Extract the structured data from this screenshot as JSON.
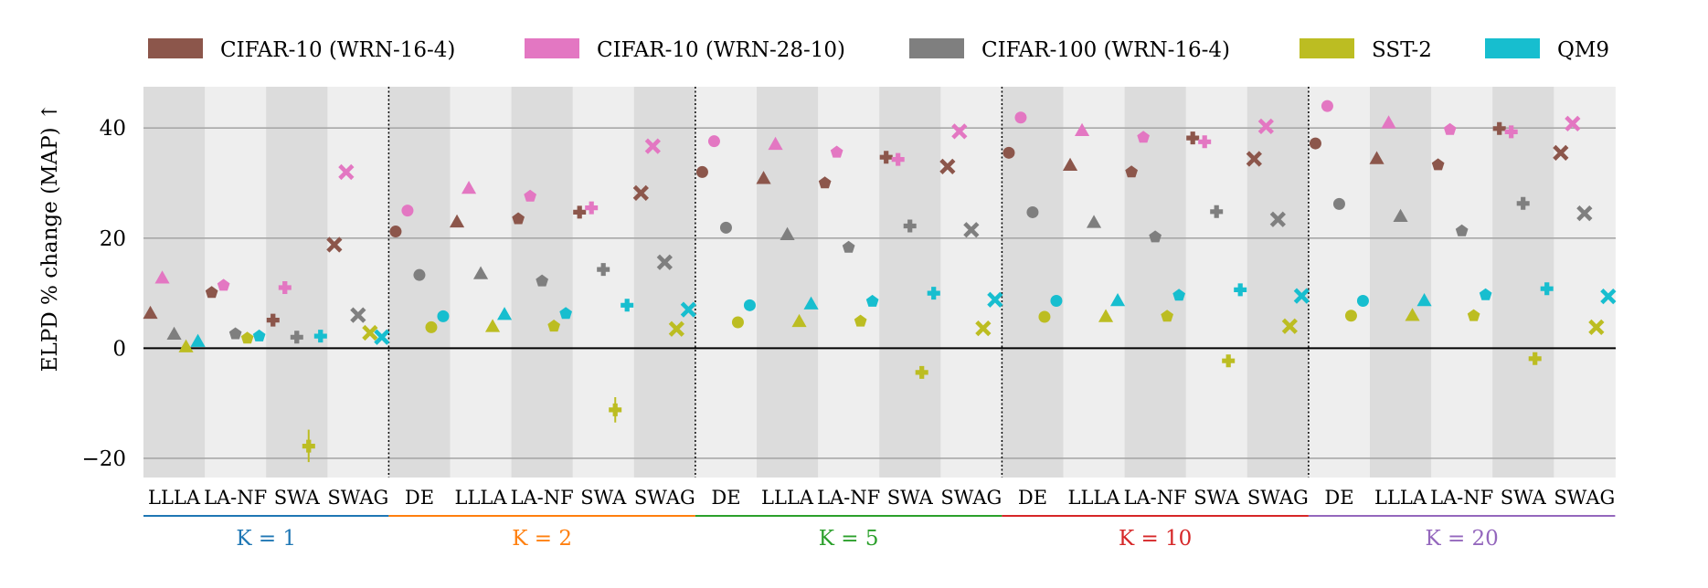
{
  "chart_data": {
    "type": "scatter",
    "title": "",
    "xlabel": "",
    "ylabel": "ELPD % change (MAP) ↑",
    "ylim": [
      -23.5,
      47.5
    ],
    "yticks": [
      -20,
      0,
      20,
      40
    ],
    "grid": true,
    "legend_position": "top",
    "legend": [
      {
        "name": "CIFAR-10 (WRN-16-4)",
        "color": "#8c564b"
      },
      {
        "name": "CIFAR-10 (WRN-28-10)",
        "color": "#e377c2"
      },
      {
        "name": "CIFAR-100 (WRN-16-4)",
        "color": "#7f7f7f"
      },
      {
        "name": "SST-2",
        "color": "#bcbd22"
      },
      {
        "name": "QM9",
        "color": "#17becf"
      }
    ],
    "method_markers": {
      "DE": "circle",
      "LLLA": "triangle",
      "LA-NF": "pentagon",
      "SWA": "plus",
      "SWAG": "x"
    },
    "groups": [
      {
        "label": "K = 1",
        "color": "#1f77b4",
        "methods": [
          "LLLA",
          "LA-NF",
          "SWA",
          "SWAG"
        ],
        "values": [
          [
            6.3,
            12.7,
            2.5,
            0.2,
            1.2
          ],
          [
            10.1,
            11.4,
            2.6,
            1.8,
            2.2
          ],
          [
            5.1,
            11.0,
            2.0,
            -17.8,
            2.2
          ],
          [
            18.8,
            32.0,
            6.0,
            2.8,
            2.0
          ]
        ]
      },
      {
        "label": "K = 2",
        "color": "#ff7f0e",
        "methods": [
          "DE",
          "LLLA",
          "LA-NF",
          "SWA",
          "SWAG"
        ],
        "values": [
          [
            21.2,
            25.0,
            13.3,
            3.8,
            5.8
          ],
          [
            22.9,
            29.0,
            13.5,
            3.9,
            6.1
          ],
          [
            23.5,
            27.6,
            12.2,
            4.0,
            6.3
          ],
          [
            24.7,
            25.5,
            14.3,
            -11.2,
            7.8
          ],
          [
            28.2,
            36.7,
            15.6,
            3.5,
            7.0
          ]
        ]
      },
      {
        "label": "K = 5",
        "color": "#2ca02c",
        "methods": [
          "DE",
          "LLLA",
          "LA-NF",
          "SWA",
          "SWAG"
        ],
        "values": [
          [
            32.0,
            37.6,
            21.9,
            4.7,
            7.8
          ],
          [
            30.8,
            37.0,
            20.6,
            4.8,
            8.0
          ],
          [
            30.0,
            35.6,
            18.3,
            4.9,
            8.5
          ],
          [
            34.7,
            34.3,
            22.2,
            -4.4,
            10.0
          ],
          [
            33.0,
            39.4,
            21.5,
            3.6,
            8.8
          ]
        ]
      },
      {
        "label": "K = 10",
        "color": "#d62728",
        "methods": [
          "DE",
          "LLLA",
          "LA-NF",
          "SWA",
          "SWAG"
        ],
        "values": [
          [
            35.5,
            41.9,
            24.7,
            5.7,
            8.6
          ],
          [
            33.2,
            39.5,
            22.8,
            5.7,
            8.6
          ],
          [
            32.0,
            38.3,
            20.2,
            5.8,
            9.6
          ],
          [
            38.2,
            37.5,
            24.8,
            -2.3,
            10.6
          ],
          [
            34.4,
            40.3,
            23.4,
            4.0,
            9.5
          ]
        ]
      },
      {
        "label": "K = 20",
        "color": "#9467bd",
        "methods": [
          "DE",
          "LLLA",
          "LA-NF",
          "SWA",
          "SWAG"
        ],
        "values": [
          [
            37.2,
            44.0,
            26.2,
            5.9,
            8.6
          ],
          [
            34.4,
            40.9,
            23.9,
            5.9,
            8.6
          ],
          [
            33.3,
            39.7,
            21.3,
            5.9,
            9.7
          ],
          [
            39.9,
            39.3,
            26.3,
            -1.9,
            10.8
          ],
          [
            35.5,
            40.8,
            24.5,
            3.8,
            9.4
          ]
        ]
      }
    ],
    "error_bars": [
      {
        "group": 0,
        "method": 2,
        "series": 3,
        "low": -20.7,
        "high": -14.8
      },
      {
        "group": 1,
        "method": 3,
        "series": 3,
        "low": -13.5,
        "high": -8.9
      }
    ]
  }
}
